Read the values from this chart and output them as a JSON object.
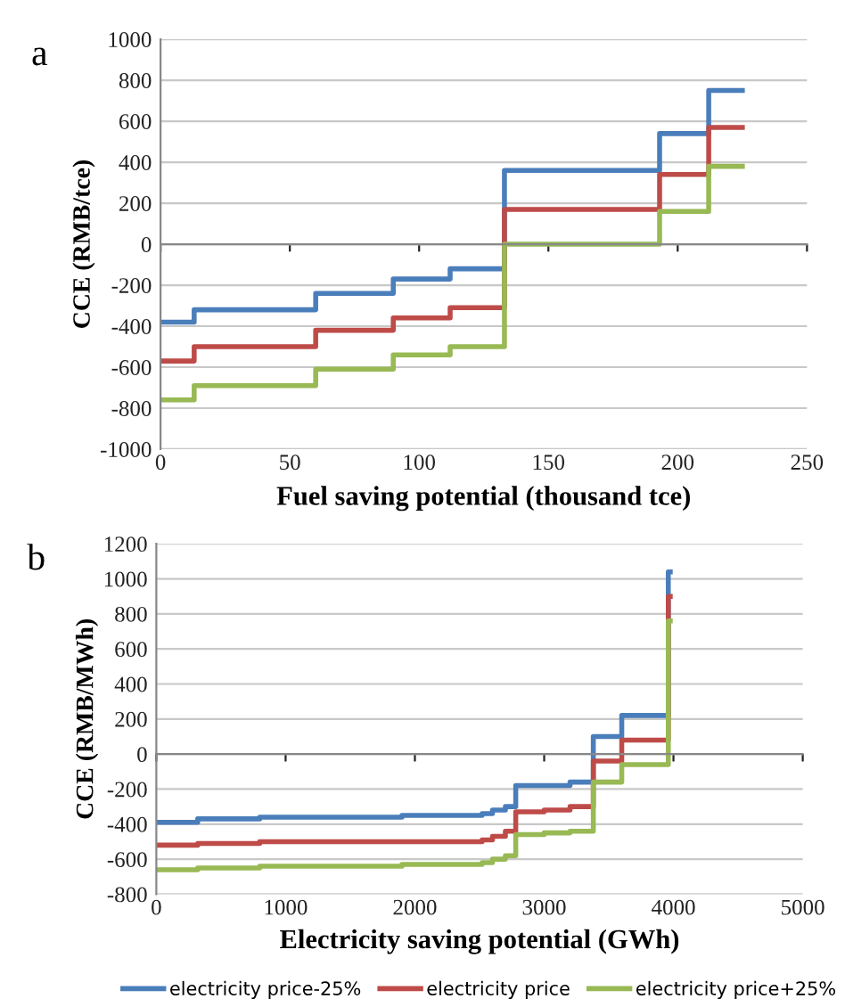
{
  "chart_data": [
    {
      "type": "step",
      "ylabel": "CCE (RMB/tce)",
      "xlabel": "Fuel saving potential (thousand tce)",
      "annotations": [
        "a"
      ],
      "xlim": [
        0,
        250
      ],
      "xticks": [
        0,
        50,
        100,
        150,
        200,
        250
      ],
      "ylim": [
        -1000,
        1000
      ],
      "yticks": [
        -1000,
        -800,
        -600,
        -400,
        -200,
        0,
        200,
        400,
        600,
        800,
        1000
      ],
      "grid": "y",
      "series": [
        {
          "color": "#4a7ebb",
          "x": [
            0,
            13,
            60,
            90,
            112,
            133,
            193,
            212,
            225
          ],
          "values": [
            -380,
            -320,
            -240,
            -170,
            -120,
            360,
            540,
            750,
            750
          ]
        },
        {
          "color": "#be4b48",
          "x": [
            0,
            13,
            60,
            90,
            112,
            133,
            193,
            212,
            225
          ],
          "values": [
            -570,
            -500,
            -420,
            -360,
            -310,
            170,
            340,
            570,
            570
          ]
        },
        {
          "color": "#98b954",
          "x": [
            0,
            13,
            60,
            90,
            112,
            133,
            193,
            212,
            225
          ],
          "values": [
            -760,
            -690,
            -610,
            -540,
            -500,
            0,
            160,
            380,
            380
          ]
        }
      ]
    },
    {
      "type": "step",
      "ylabel": "CCE (RMB/MWh)",
      "xlabel": "Electricity saving potential (GWh)",
      "annotations": [
        "b"
      ],
      "xlim": [
        0,
        5000
      ],
      "xticks": [
        0,
        1000,
        2000,
        3000,
        4000,
        5000
      ],
      "ylim": [
        -800,
        1200
      ],
      "yticks": [
        -800,
        -600,
        -400,
        -200,
        0,
        200,
        400,
        600,
        800,
        1000,
        1200
      ],
      "grid": "y",
      "legend": "bottom",
      "series": [
        {
          "name": "electricity price-25%",
          "color": "#4a7ebb",
          "x": [
            0,
            320,
            800,
            1900,
            2520,
            2600,
            2700,
            2780,
            3000,
            3200,
            3380,
            3600,
            3960,
            3975
          ],
          "values": [
            -390,
            -370,
            -360,
            -350,
            -340,
            -320,
            -300,
            -180,
            -180,
            -160,
            100,
            220,
            1040,
            1040
          ]
        },
        {
          "name": "electricity price",
          "color": "#be4b48",
          "x": [
            0,
            320,
            800,
            1900,
            2520,
            2600,
            2700,
            2780,
            3000,
            3200,
            3380,
            3600,
            3960,
            3975
          ],
          "values": [
            -520,
            -510,
            -500,
            -500,
            -490,
            -470,
            -440,
            -330,
            -320,
            -300,
            -40,
            80,
            900,
            900
          ]
        },
        {
          "name": "electricity price+25%",
          "color": "#98b954",
          "x": [
            0,
            320,
            800,
            1900,
            2520,
            2600,
            2700,
            2780,
            3000,
            3200,
            3380,
            3600,
            3960,
            3975
          ],
          "values": [
            -660,
            -650,
            -640,
            -630,
            -620,
            -600,
            -580,
            -460,
            -450,
            -440,
            -160,
            -60,
            760,
            760
          ]
        }
      ]
    }
  ]
}
